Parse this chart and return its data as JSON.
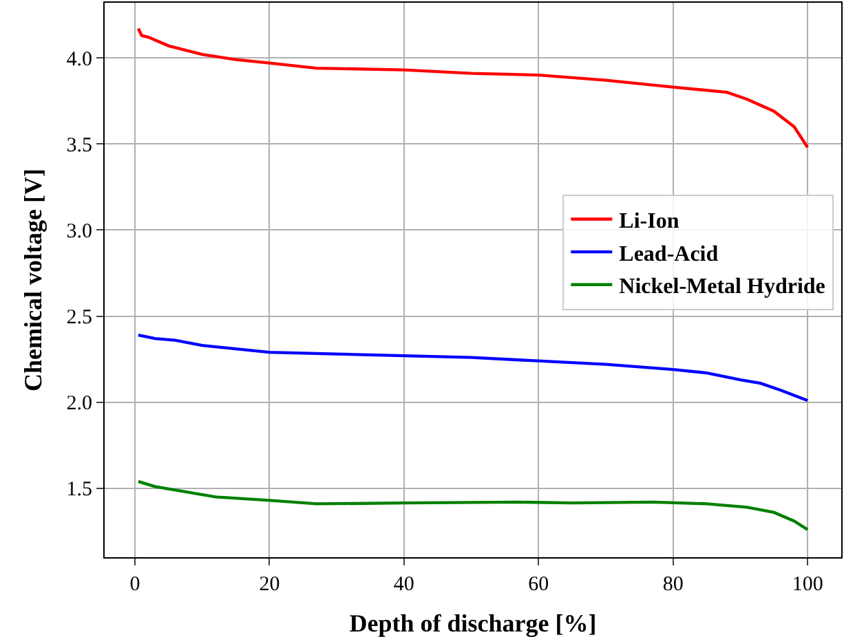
{
  "chart_data": {
    "type": "line",
    "xlabel": "Depth of discharge [%]",
    "ylabel": "Chemical voltage [V]",
    "xlim": [
      -4.5,
      105
    ],
    "xticks": [
      0,
      20,
      40,
      60,
      80,
      100
    ],
    "ylim": [
      1.1,
      4.32
    ],
    "yticks": [
      1.5,
      {
        "value": 2,
        "label": "2.0"
      },
      2.5,
      {
        "value": 3,
        "label": "3.0"
      },
      3.5,
      {
        "value": 4,
        "label": "4.0"
      }
    ],
    "grid": true,
    "legend": "right",
    "line_style": "solid",
    "marker": "none",
    "series": [
      {
        "name": "Li-Ion",
        "color": "#ff0000",
        "x": [
          0.5,
          1,
          2,
          5,
          10,
          15,
          20,
          27,
          40,
          50,
          60,
          70,
          80,
          88,
          91,
          95,
          98,
          100
        ],
        "values": [
          4.17,
          4.13,
          4.12,
          4.07,
          4.02,
          3.99,
          3.97,
          3.94,
          3.93,
          3.91,
          3.9,
          3.87,
          3.83,
          3.8,
          3.76,
          3.69,
          3.6,
          3.48
        ]
      },
      {
        "name": "Lead-Acid",
        "color": "#0000ff",
        "x": [
          0.5,
          3,
          6,
          10,
          15,
          20,
          30,
          40,
          50,
          60,
          70,
          80,
          85,
          90,
          93,
          96,
          100
        ],
        "values": [
          2.39,
          2.37,
          2.36,
          2.33,
          2.31,
          2.29,
          2.28,
          2.27,
          2.26,
          2.24,
          2.22,
          2.19,
          2.17,
          2.13,
          2.11,
          2.07,
          2.01
        ]
      },
      {
        "name": "Nickel-Metal Hydride",
        "color": "#008000",
        "x": [
          0.5,
          3,
          6,
          12,
          20,
          27,
          40,
          57,
          65,
          77,
          85,
          91,
          95,
          98,
          100
        ],
        "values": [
          1.54,
          1.51,
          1.49,
          1.45,
          1.43,
          1.41,
          1.415,
          1.42,
          1.415,
          1.42,
          1.41,
          1.39,
          1.36,
          1.31,
          1.26
        ]
      }
    ]
  }
}
